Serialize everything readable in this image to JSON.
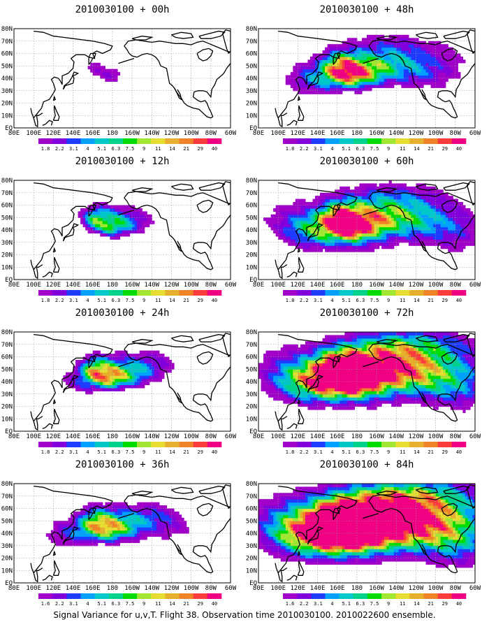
{
  "chart_data": [
    {
      "type": "heatmap",
      "title": "2010030100 + 00h",
      "forecast_hour": 0,
      "feature_intensity": 0.35,
      "feature_spread": 0.7,
      "x_ticks": [
        "80E",
        "100E",
        "120E",
        "140E",
        "160E",
        "180",
        "160W",
        "140W",
        "120W",
        "100W",
        "80W",
        "60W"
      ],
      "y_ticks": [
        "EQ",
        "10N",
        "20N",
        "30N",
        "40N",
        "50N",
        "60N",
        "70N",
        "80N"
      ],
      "xlim": [
        "80E",
        "60W"
      ],
      "ylim": [
        "EQ",
        "80N"
      ],
      "grid": true,
      "colorbar": [
        "1.8",
        "2.2",
        "3.1",
        "4",
        "5.1",
        "6.3",
        "7.5",
        "9",
        "11",
        "14",
        "21",
        "29",
        "40"
      ]
    },
    {
      "type": "heatmap",
      "title": "2010030100 + 48h",
      "forecast_hour": 48,
      "feature_intensity": 0.6,
      "feature_spread": 1.6,
      "x_ticks": [
        "80E",
        "100E",
        "120E",
        "140E",
        "160E",
        "180",
        "160W",
        "140W",
        "120W",
        "100W",
        "80W",
        "60W"
      ],
      "y_ticks": [
        "EQ",
        "10N",
        "20N",
        "30N",
        "40N",
        "50N",
        "60N",
        "70N",
        "80N"
      ],
      "xlim": [
        "80E",
        "60W"
      ],
      "ylim": [
        "EQ",
        "80N"
      ],
      "grid": true,
      "colorbar": [
        "1.8",
        "2.2",
        "3.1",
        "4",
        "5.1",
        "6.3",
        "7.5",
        "9",
        "11",
        "14",
        "21",
        "29",
        "40"
      ]
    },
    {
      "type": "heatmap",
      "title": "2010030100 + 12h",
      "forecast_hour": 12,
      "feature_intensity": 0.7,
      "feature_spread": 0.9,
      "x_ticks": [
        "80E",
        "100E",
        "120E",
        "140E",
        "160E",
        "180",
        "160W",
        "140W",
        "120W",
        "100W",
        "80W",
        "60W"
      ],
      "y_ticks": [
        "EQ",
        "10N",
        "20N",
        "30N",
        "40N",
        "50N",
        "60N",
        "70N",
        "80N"
      ],
      "xlim": [
        "80E",
        "60W"
      ],
      "ylim": [
        "EQ",
        "80N"
      ],
      "grid": true,
      "colorbar": [
        "1.8",
        "2.2",
        "3.1",
        "4",
        "5.1",
        "6.3",
        "7.5",
        "9",
        "11",
        "14",
        "21",
        "29",
        "40"
      ]
    },
    {
      "type": "heatmap",
      "title": "2010030100 + 60h",
      "forecast_hour": 60,
      "feature_intensity": 0.65,
      "feature_spread": 1.9,
      "x_ticks": [
        "80E",
        "100E",
        "120E",
        "140E",
        "160E",
        "180",
        "160W",
        "140W",
        "120W",
        "100W",
        "80W",
        "60W"
      ],
      "y_ticks": [
        "EQ",
        "10N",
        "20N",
        "30N",
        "40N",
        "50N",
        "60N",
        "70N",
        "80N"
      ],
      "xlim": [
        "80E",
        "60W"
      ],
      "ylim": [
        "EQ",
        "80N"
      ],
      "grid": true,
      "colorbar": [
        "1.8",
        "2.2",
        "3.1",
        "4",
        "5.1",
        "6.3",
        "7.5",
        "9",
        "11",
        "14",
        "21",
        "29",
        "40"
      ]
    },
    {
      "type": "heatmap",
      "title": "2010030100 + 24h",
      "forecast_hour": 24,
      "feature_intensity": 0.75,
      "feature_spread": 1.1,
      "x_ticks": [
        "80E",
        "100E",
        "120E",
        "140E",
        "160E",
        "180",
        "160W",
        "140W",
        "120W",
        "100W",
        "80W",
        "60W"
      ],
      "y_ticks": [
        "EQ",
        "10N",
        "20N",
        "30N",
        "40N",
        "50N",
        "60N",
        "70N",
        "80N"
      ],
      "xlim": [
        "80E",
        "60W"
      ],
      "ylim": [
        "EQ",
        "80N"
      ],
      "grid": true,
      "colorbar": [
        "1.8",
        "2.2",
        "3.1",
        "4",
        "5.1",
        "6.3",
        "7.5",
        "9",
        "11",
        "14",
        "21",
        "29",
        "40"
      ]
    },
    {
      "type": "heatmap",
      "title": "2010030100 + 72h",
      "forecast_hour": 72,
      "feature_intensity": 0.85,
      "feature_spread": 2.3,
      "x_ticks": [
        "80E",
        "100E",
        "120E",
        "140E",
        "160E",
        "180",
        "160W",
        "140W",
        "120W",
        "100W",
        "80W",
        "60W"
      ],
      "y_ticks": [
        "EQ",
        "10N",
        "20N",
        "30N",
        "40N",
        "50N",
        "60N",
        "70N",
        "80N"
      ],
      "xlim": [
        "80E",
        "60W"
      ],
      "ylim": [
        "EQ",
        "80N"
      ],
      "grid": true,
      "colorbar": [
        "1.8",
        "2.2",
        "3.1",
        "4",
        "5.1",
        "6.3",
        "7.5",
        "9",
        "11",
        "14",
        "21",
        "29",
        "40"
      ]
    },
    {
      "type": "heatmap",
      "title": "2010030100 + 36h",
      "forecast_hour": 36,
      "feature_intensity": 0.55,
      "feature_spread": 1.35,
      "x_ticks": [
        "80E",
        "100E",
        "120E",
        "140E",
        "160E",
        "180",
        "160W",
        "140W",
        "120W",
        "100W",
        "80W",
        "60W"
      ],
      "y_ticks": [
        "EQ",
        "10N",
        "20N",
        "30N",
        "40N",
        "50N",
        "60N",
        "70N",
        "80N"
      ],
      "xlim": [
        "80E",
        "60W"
      ],
      "ylim": [
        "EQ",
        "80N"
      ],
      "grid": true,
      "colorbar": [
        "1.6",
        "2.2",
        "3.1",
        "4",
        "5.1",
        "6.3",
        "7.5",
        "9",
        "11",
        "14",
        "21",
        "29",
        "40"
      ]
    },
    {
      "type": "heatmap",
      "title": "2010030100 + 84h",
      "forecast_hour": 84,
      "feature_intensity": 0.95,
      "feature_spread": 2.7,
      "x_ticks": [
        "80E",
        "100E",
        "120E",
        "140E",
        "160E",
        "180",
        "160W",
        "140W",
        "120W",
        "100W",
        "80W",
        "60W"
      ],
      "y_ticks": [
        "EQ",
        "10N",
        "20N",
        "30N",
        "40N",
        "50N",
        "60N",
        "70N",
        "80N"
      ],
      "xlim": [
        "80E",
        "60W"
      ],
      "ylim": [
        "EQ",
        "80N"
      ],
      "grid": true,
      "colorbar": [
        "1.6",
        "2.2",
        "3.1",
        "4",
        "5.1",
        "6.3",
        "7.5",
        "9",
        "11",
        "14",
        "21",
        "29",
        "40"
      ]
    }
  ],
  "colorbar_colors": [
    "#a000c8",
    "#8200dc",
    "#1e3cff",
    "#00a0ff",
    "#00c8c8",
    "#00d28c",
    "#00dc00",
    "#a0e632",
    "#e6dc32",
    "#e6af2d",
    "#f08228",
    "#fa3c3c",
    "#f00082"
  ],
  "caption": "Signal Variance for u,v,T. Flight 38. Observation time 2010030100. 2010022600 ensemble."
}
